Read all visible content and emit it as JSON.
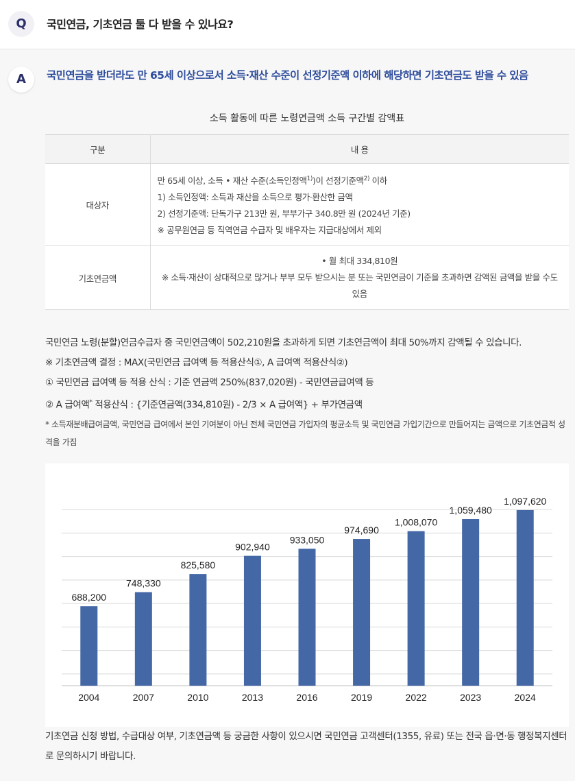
{
  "question": {
    "badge": "Q",
    "text": "국민연금, 기초연금 둘 다 받을 수 있나요?"
  },
  "answer": {
    "badge": "A",
    "headline": "국민연금을 받더라도 만 65세 이상으로서 소득·재산 수준이 선정기준액 이하에 해당하면 기초연금도 받을 수 있음"
  },
  "table": {
    "title": "소득 활동에 따른 노령연금액 소득 구간별 감액표",
    "headers": [
      "구분",
      "내 용"
    ],
    "row1": {
      "label": "대상자",
      "line1_pre": "만 65세 이상, 소득 • 재산 수준(소득인정액",
      "line1_sup1": "1)",
      "line1_mid": ")이 선정기준액",
      "line1_sup2": "2)",
      "line1_post": " 이하",
      "line2": "1) 소득인정액: 소득과 재산을 소득으로 평가·환산한 금액",
      "line3": "2) 선정기준액: 단독가구 213만 원, 부부가구 340.8만 원 (2024년 기준)",
      "line4": "※ 공무원연금 등 직역연금 수급자 및 배우자는 지급대상에서 제외"
    },
    "row2": {
      "label": "기초연금액",
      "line1": "• 월 최대 334,810원",
      "line2": "※ 소득·재산이 상대적으로 많거나 부부 모두 받으시는 분 또는 국민연금이 기준을 초과하면 감액된 금액을 받을 수도 있음"
    }
  },
  "body": {
    "para1": "국민연금 노령(분할)연금수급자 중 국민연금액이 502,210원을 초과하게 되면 기초연금액이 최대 50%까지 감액될 수 있습니다.",
    "line2": "※ 기초연금액 결정 : MAX(국민연금 급여액 등 적용산식①, A 급여액 적용산식②)",
    "line3": "① 국민연금 급여액 등 적용 산식 : 기준 연금액 250%(837,020원) - 국민연금급여액 등",
    "line4_pre": "② A 급여액",
    "line4_sup": "*",
    "line4_post": " 적용산식 : {기준연금액(334,810원) - 2/3 × A 급여액} + 부가연금액",
    "note": "* 소득재분배급여금액, 국민연금 급여에서 본인 기여분이 아닌 전체 국민연금 가입자의 평균소득 및 국민연금 가입기간으로 만들어지는 금액으로 기초연금적 성격을 가짐"
  },
  "chart_data": {
    "type": "bar",
    "categories": [
      "2004",
      "2007",
      "2010",
      "2013",
      "2016",
      "2019",
      "2022",
      "2023",
      "2024"
    ],
    "values": [
      688200,
      748330,
      825580,
      902940,
      933050,
      974690,
      1008070,
      1059480,
      1097620
    ],
    "value_labels": [
      "688,200",
      "748,330",
      "825,580",
      "902,940",
      "933,050",
      "974,690",
      "1,008,070",
      "1,059,480",
      "1,097,620"
    ],
    "ylim": [
      350000,
      1150000
    ],
    "grid": true,
    "bar_color": "#4467a5",
    "title": "",
    "xlabel": "",
    "ylabel": ""
  },
  "footer": {
    "text": "기초연금 신청 방법, 수급대상 여부, 기초연금액 등 궁금한 사항이 있으시면 국민연금 고객센터(1355, 유료) 또는 전국 읍·면·동 행정복지센터로 문의하시기 바랍니다."
  }
}
